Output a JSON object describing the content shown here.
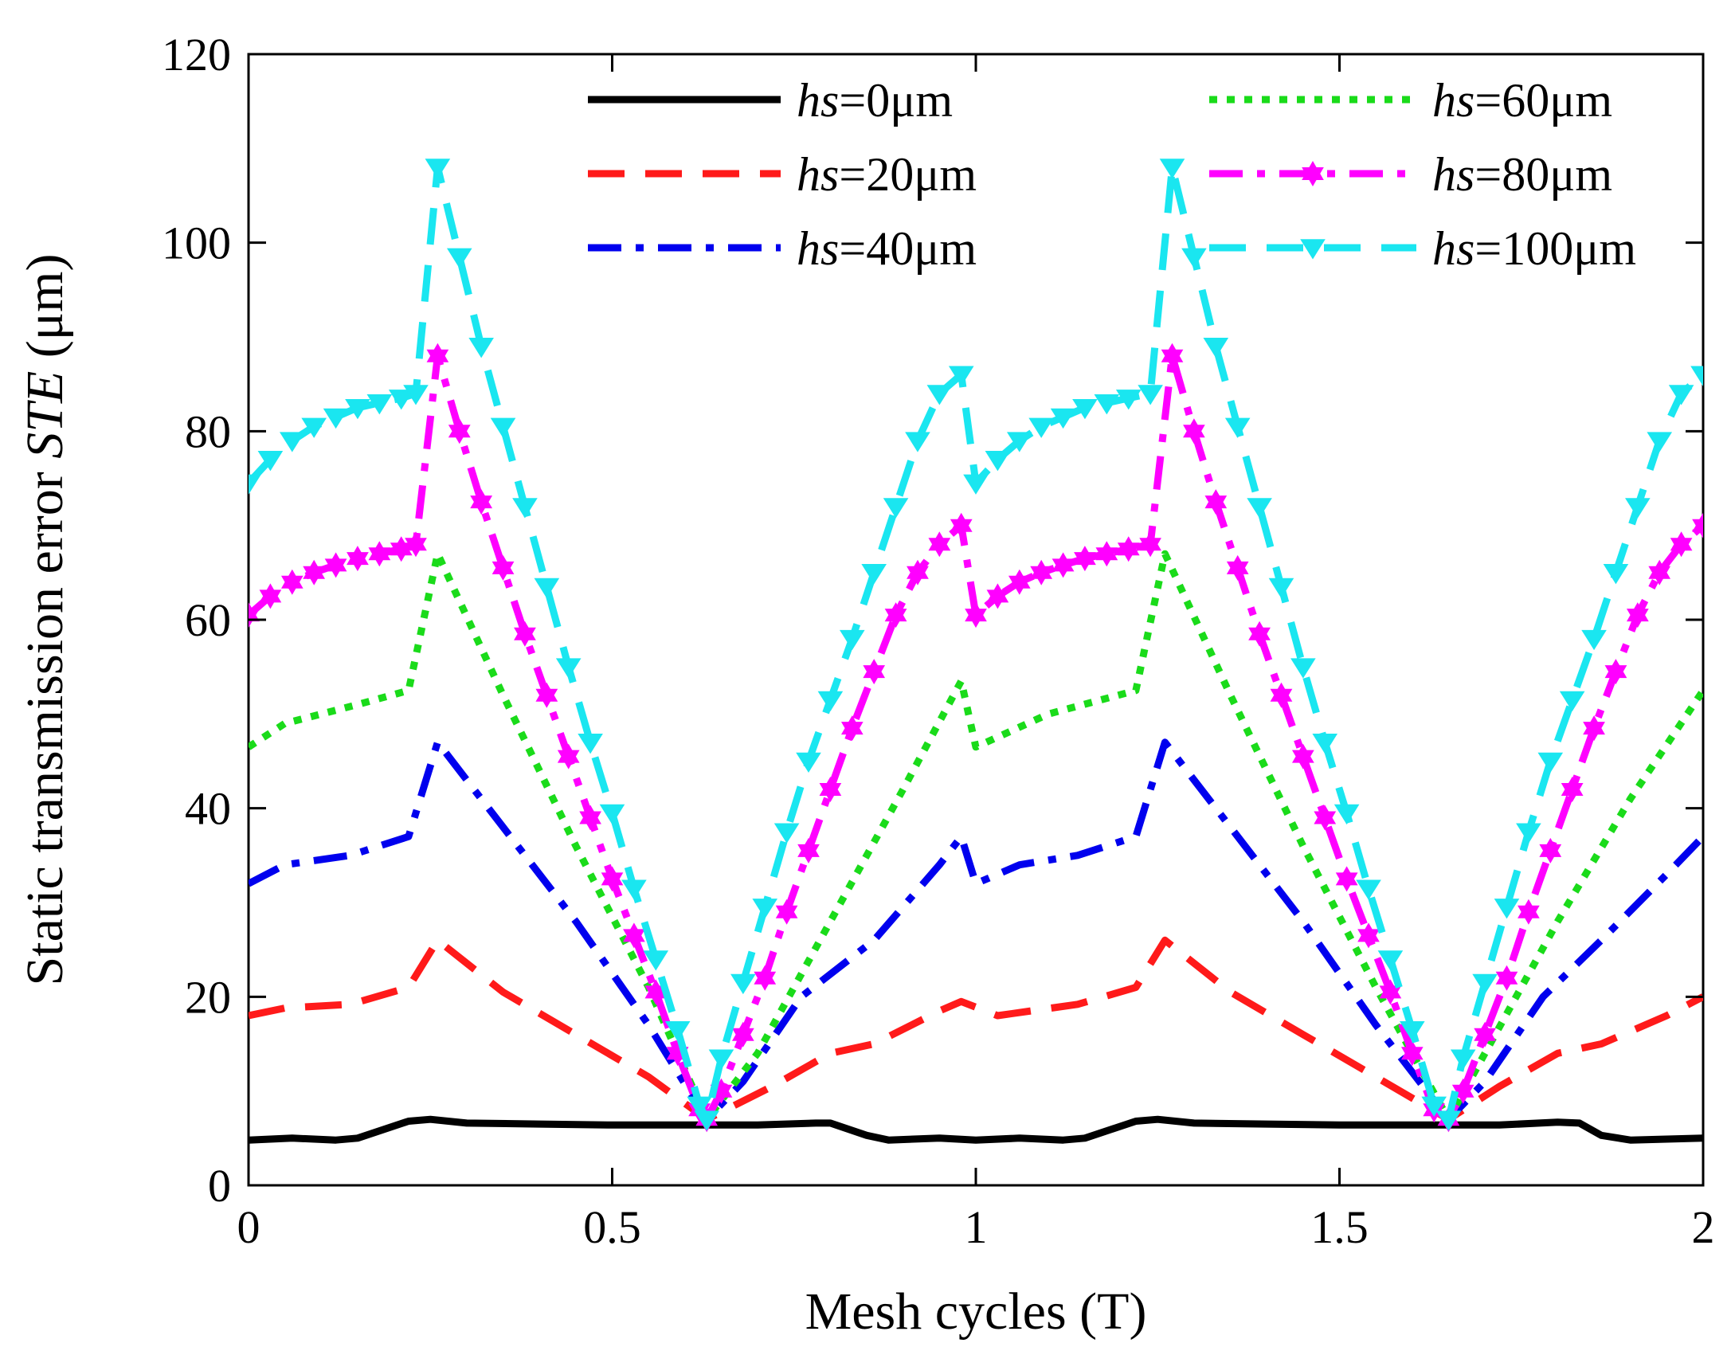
{
  "chart_data": {
    "type": "line",
    "title": "",
    "xlabel": "Mesh cycles (T)",
    "ylabel_prefix": "Static transmission error ",
    "ylabel_italic": "STE",
    "ylabel_suffix": " (μm)",
    "xlim": [
      0,
      2
    ],
    "ylim": [
      0,
      120
    ],
    "xticks": [
      0,
      0.5,
      1,
      1.5,
      2
    ],
    "xtick_labels": [
      "0",
      "0.5",
      "1",
      "1.5",
      "2"
    ],
    "yticks": [
      0,
      20,
      40,
      60,
      80,
      100,
      120
    ],
    "ytick_labels": [
      "0",
      "20",
      "40",
      "60",
      "80",
      "100",
      "120"
    ],
    "grid": false,
    "legend_position": "top",
    "series": [
      {
        "name_prefix": "hs",
        "name_suffix": "=0μm",
        "color": "#000000",
        "style": "solid",
        "marker": "none",
        "x": [
          0,
          0.06,
          0.12,
          0.15,
          0.22,
          0.25,
          0.3,
          0.4,
          0.5,
          0.6,
          0.63,
          0.7,
          0.78,
          0.8,
          0.85,
          0.88,
          0.95,
          1.0,
          1.06,
          1.12,
          1.15,
          1.22,
          1.25,
          1.3,
          1.4,
          1.5,
          1.6,
          1.65,
          1.72,
          1.8,
          1.83,
          1.86,
          1.9,
          2.0
        ],
        "y": [
          4.8,
          5.0,
          4.8,
          5.0,
          6.8,
          7.0,
          6.6,
          6.5,
          6.4,
          6.4,
          6.4,
          6.4,
          6.6,
          6.6,
          5.3,
          4.8,
          5.0,
          4.8,
          5.0,
          4.8,
          5.0,
          6.8,
          7.0,
          6.6,
          6.5,
          6.4,
          6.4,
          6.4,
          6.4,
          6.7,
          6.6,
          5.3,
          4.8,
          5.0
        ]
      },
      {
        "name_prefix": "hs",
        "name_suffix": "=20μm",
        "color": "#ff1a1a",
        "style": "dashed",
        "marker": "none",
        "x": [
          0,
          0.05,
          0.14,
          0.22,
          0.26,
          0.35,
          0.45,
          0.55,
          0.63,
          0.72,
          0.8,
          0.86,
          0.95,
          0.98,
          1.03,
          1.14,
          1.22,
          1.26,
          1.35,
          1.45,
          1.55,
          1.65,
          1.72,
          1.8,
          1.86,
          1.95,
          2.0
        ],
        "y": [
          18.0,
          18.8,
          19.2,
          21.0,
          26.0,
          20.5,
          16.0,
          11.5,
          7.0,
          10.5,
          14.0,
          15.0,
          18.5,
          19.5,
          18.0,
          19.2,
          21.0,
          26.0,
          20.5,
          16.0,
          11.5,
          7.0,
          10.5,
          14.0,
          15.0,
          18.0,
          20.0
        ]
      },
      {
        "name_prefix": "hs",
        "name_suffix": "=40μm",
        "color": "#0000ee",
        "style": "dashdot",
        "marker": "none",
        "x": [
          0,
          0.05,
          0.14,
          0.22,
          0.26,
          0.35,
          0.45,
          0.55,
          0.63,
          0.68,
          0.76,
          0.86,
          0.95,
          0.98,
          1.0,
          1.06,
          1.14,
          1.22,
          1.26,
          1.35,
          1.45,
          1.55,
          1.65,
          1.7,
          1.78,
          1.86,
          1.95,
          2.0
        ],
        "y": [
          32.0,
          34.0,
          35.0,
          37.0,
          47.0,
          38.0,
          28.0,
          17.0,
          7.0,
          11.0,
          20.0,
          26.0,
          34.0,
          37.0,
          32.0,
          34.0,
          35.0,
          37.0,
          47.0,
          38.0,
          28.0,
          17.0,
          7.0,
          11.0,
          20.0,
          26.0,
          33.0,
          37.0
        ]
      },
      {
        "name_prefix": "hs",
        "name_suffix": "=60μm",
        "color": "#1adb1a",
        "style": "dotted",
        "marker": "none",
        "x": [
          0,
          0.05,
          0.15,
          0.22,
          0.26,
          0.35,
          0.45,
          0.55,
          0.63,
          0.7,
          0.8,
          0.9,
          0.98,
          1.0,
          1.1,
          1.22,
          1.26,
          1.35,
          1.45,
          1.55,
          1.65,
          1.7,
          1.8,
          1.9,
          2.0
        ],
        "y": [
          46.5,
          49.0,
          51.0,
          52.5,
          67.0,
          52.0,
          36.0,
          21.0,
          7.0,
          14.0,
          28.0,
          42.0,
          53.5,
          46.5,
          50.0,
          52.5,
          67.0,
          52.0,
          36.0,
          21.0,
          7.0,
          14.0,
          28.0,
          41.0,
          52.5
        ]
      },
      {
        "name_prefix": "hs",
        "name_suffix": "=80μm",
        "color": "#ff00ff",
        "style": "dashdot",
        "marker": "hexagram",
        "x": [
          0,
          0.03,
          0.06,
          0.09,
          0.12,
          0.15,
          0.18,
          0.21,
          0.23,
          0.26,
          0.29,
          0.32,
          0.35,
          0.38,
          0.41,
          0.44,
          0.47,
          0.5,
          0.53,
          0.56,
          0.59,
          0.62,
          0.63,
          0.65,
          0.68,
          0.71,
          0.74,
          0.77,
          0.8,
          0.83,
          0.86,
          0.89,
          0.92,
          0.95,
          0.98,
          1.0,
          1.03,
          1.06,
          1.09,
          1.12,
          1.15,
          1.18,
          1.21,
          1.24,
          1.27,
          1.3,
          1.33,
          1.36,
          1.39,
          1.42,
          1.45,
          1.48,
          1.51,
          1.54,
          1.57,
          1.6,
          1.63,
          1.65,
          1.67,
          1.7,
          1.73,
          1.76,
          1.79,
          1.82,
          1.85,
          1.88,
          1.91,
          1.94,
          1.97,
          2.0
        ],
        "y": [
          60.5,
          62.5,
          64.0,
          65.0,
          65.8,
          66.5,
          67.0,
          67.5,
          68.0,
          88.0,
          80.0,
          72.5,
          65.5,
          58.5,
          52.0,
          45.5,
          39.0,
          32.5,
          26.5,
          20.5,
          14.0,
          8.0,
          7.0,
          10.0,
          16.0,
          22.0,
          29.0,
          35.5,
          42.0,
          48.5,
          54.5,
          60.5,
          65.0,
          68.0,
          70.0,
          60.5,
          62.5,
          64.0,
          65.0,
          65.8,
          66.5,
          67.0,
          67.5,
          68.0,
          88.0,
          80.0,
          72.5,
          65.5,
          58.5,
          52.0,
          45.5,
          39.0,
          32.5,
          26.5,
          20.5,
          14.0,
          8.0,
          7.0,
          10.0,
          16.0,
          22.0,
          29.0,
          35.5,
          42.0,
          48.5,
          54.5,
          60.5,
          65.0,
          68.0,
          70.0
        ]
      },
      {
        "name_prefix": "hs",
        "name_suffix": "=100μm",
        "color": "#1ae6f0",
        "style": "dashed",
        "marker": "triangle-down",
        "x": [
          0,
          0.03,
          0.06,
          0.09,
          0.12,
          0.15,
          0.18,
          0.21,
          0.23,
          0.26,
          0.29,
          0.32,
          0.35,
          0.38,
          0.41,
          0.44,
          0.47,
          0.5,
          0.53,
          0.56,
          0.59,
          0.62,
          0.63,
          0.65,
          0.68,
          0.71,
          0.74,
          0.77,
          0.8,
          0.83,
          0.86,
          0.89,
          0.92,
          0.95,
          0.98,
          1.0,
          1.03,
          1.06,
          1.09,
          1.12,
          1.15,
          1.18,
          1.21,
          1.24,
          1.27,
          1.3,
          1.33,
          1.36,
          1.39,
          1.42,
          1.45,
          1.48,
          1.51,
          1.54,
          1.57,
          1.6,
          1.63,
          1.65,
          1.67,
          1.7,
          1.73,
          1.76,
          1.79,
          1.82,
          1.85,
          1.88,
          1.91,
          1.94,
          1.97,
          2.0
        ],
        "y": [
          74.5,
          77.0,
          79.0,
          80.5,
          81.5,
          82.5,
          83.0,
          83.5,
          84.0,
          108.0,
          98.5,
          89.0,
          80.5,
          72.0,
          63.5,
          55.0,
          47.0,
          39.5,
          31.5,
          24.0,
          16.5,
          8.5,
          7.0,
          13.5,
          21.5,
          29.5,
          37.5,
          45.0,
          51.5,
          58.0,
          65.0,
          72.0,
          79.0,
          84.0,
          86.0,
          74.5,
          77.0,
          79.0,
          80.5,
          81.5,
          82.5,
          83.0,
          83.5,
          84.0,
          108.0,
          98.5,
          89.0,
          80.5,
          72.0,
          63.5,
          55.0,
          47.0,
          39.5,
          31.5,
          24.0,
          16.5,
          8.5,
          7.0,
          13.5,
          21.5,
          29.5,
          37.5,
          45.0,
          51.5,
          58.0,
          65.0,
          72.0,
          79.0,
          84.0,
          86.0
        ]
      }
    ]
  }
}
